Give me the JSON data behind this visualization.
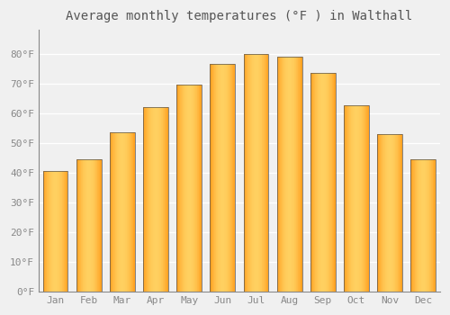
{
  "title": "Average monthly temperatures (°F ) in Walthall",
  "months": [
    "Jan",
    "Feb",
    "Mar",
    "Apr",
    "May",
    "Jun",
    "Jul",
    "Aug",
    "Sep",
    "Oct",
    "Nov",
    "Dec"
  ],
  "values": [
    40.5,
    44.5,
    53.5,
    62,
    69.5,
    76.5,
    80,
    79,
    73.5,
    62.5,
    53,
    44.5
  ],
  "bar_color_light": "#FFD060",
  "bar_color_dark": "#FFA020",
  "bar_edge_color": "#555555",
  "ylim": [
    0,
    88
  ],
  "yticks": [
    0,
    10,
    20,
    30,
    40,
    50,
    60,
    70,
    80
  ],
  "ytick_labels": [
    "0°F",
    "10°F",
    "20°F",
    "30°F",
    "40°F",
    "50°F",
    "60°F",
    "70°F",
    "80°F"
  ],
  "background_color": "#f0f0f0",
  "grid_color": "#ffffff",
  "title_fontsize": 10,
  "tick_fontsize": 8,
  "bar_width": 0.75
}
